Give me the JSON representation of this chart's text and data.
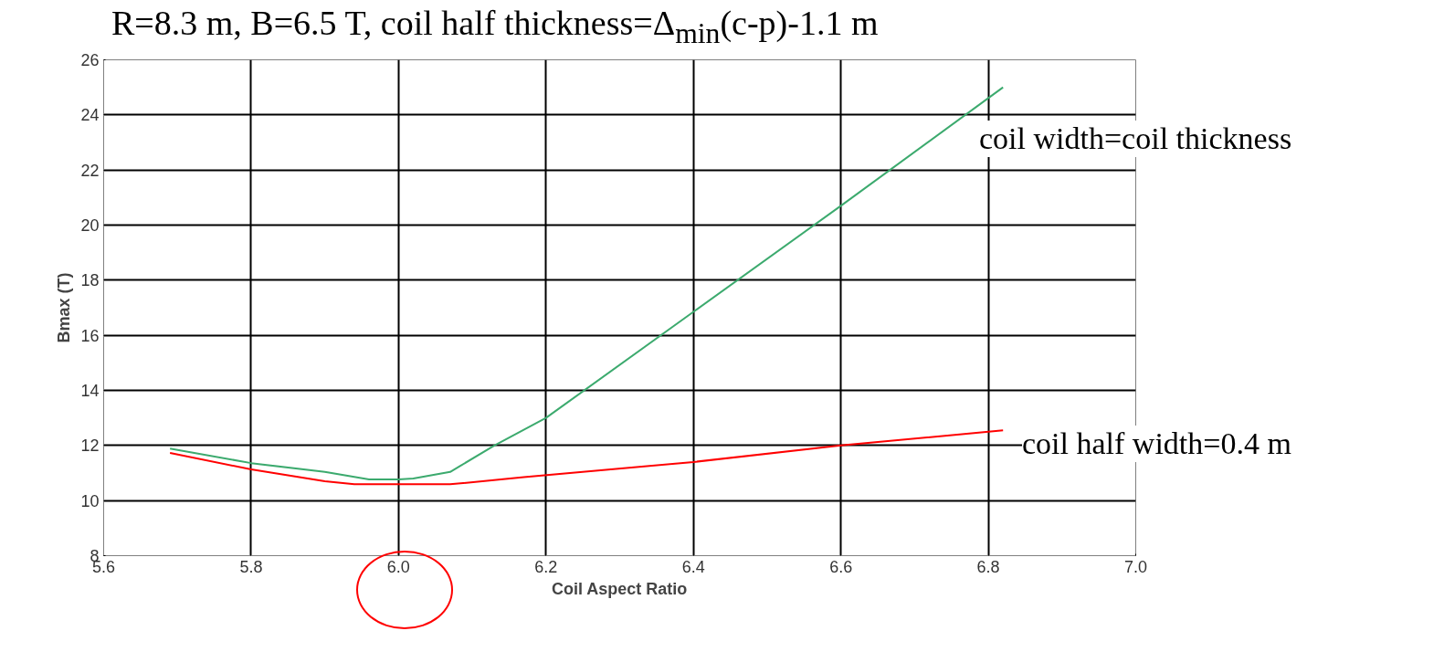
{
  "chart_data": {
    "type": "line",
    "title": "R=8.3 m, B=6.5 T, coil half thickness=Δ$_{min}$(c-p)-1.1 m",
    "xlabel": "Coil Aspect Ratio",
    "ylabel": "Bmax (T)",
    "xlim": [
      5.6,
      7.0
    ],
    "ylim": [
      8,
      26
    ],
    "xticks": [
      {
        "value": 5.6,
        "label": "5.6"
      },
      {
        "value": 5.8,
        "label": "5.8"
      },
      {
        "value": 6.0,
        "label": "6.0"
      },
      {
        "value": 6.2,
        "label": "6.2"
      },
      {
        "value": 6.4,
        "label": "6.4"
      },
      {
        "value": 6.6,
        "label": "6.6"
      },
      {
        "value": 6.8,
        "label": "6.8"
      },
      {
        "value": 7.0,
        "label": "7.0"
      }
    ],
    "yticks": [
      8,
      10,
      12,
      14,
      16,
      18,
      20,
      22,
      24,
      26
    ],
    "grid": true,
    "marker": "none",
    "line_style": "solid",
    "series": [
      {
        "name": "coil width=coil thickness",
        "color": "#3caa6e",
        "x": [
          5.69,
          5.8,
          5.9,
          5.96,
          6.0,
          6.02,
          6.07,
          6.13,
          6.2,
          6.4,
          6.6,
          6.82
        ],
        "values": [
          11.89,
          11.36,
          11.04,
          10.77,
          10.77,
          10.8,
          11.04,
          12.0,
          13.0,
          16.85,
          20.7,
          25.0
        ]
      },
      {
        "name": "coil half width=0.4 m",
        "color": "#ff0000",
        "x": [
          5.69,
          5.8,
          5.9,
          5.94,
          6.0,
          6.07,
          6.17,
          6.4,
          6.6,
          6.82
        ],
        "values": [
          11.73,
          11.13,
          10.7,
          10.59,
          10.59,
          10.59,
          10.85,
          11.4,
          12.0,
          12.55
        ]
      }
    ]
  }
}
